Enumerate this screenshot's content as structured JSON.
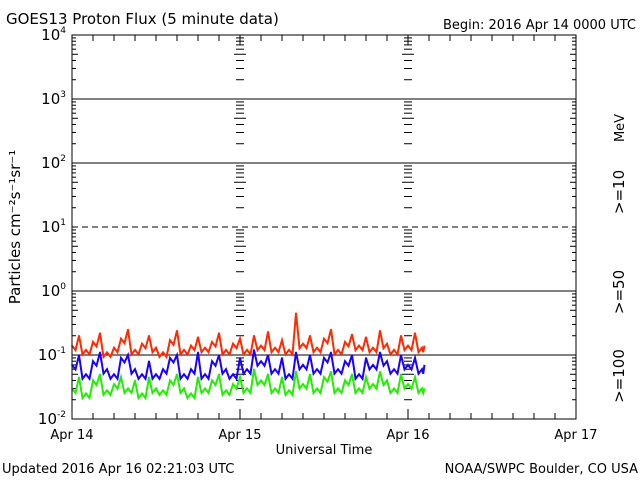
{
  "chart_data": {
    "type": "line",
    "title": "GOES13 Proton Flux (5 minute data)",
    "begin_label": "Begin: 2016 Apr 14 0000 UTC",
    "xlabel": "Universal Time",
    "ylabel": "Particles cm⁻²s⁻¹sr⁻¹",
    "x_unit": "hours since 2016 Apr 14 0000 UTC",
    "xlim": [
      0,
      72
    ],
    "x_ticks": [
      {
        "v": 0,
        "label": "Apr 14"
      },
      {
        "v": 24,
        "label": "Apr 15"
      },
      {
        "v": 48,
        "label": "Apr 16"
      },
      {
        "v": 72,
        "label": "Apr 17"
      }
    ],
    "yscale": "log",
    "ylim": [
      0.01,
      10000
    ],
    "y_ticks": [
      {
        "exp": "4",
        "v": 10000
      },
      {
        "exp": "3",
        "v": 1000
      },
      {
        "exp": "2",
        "v": 100
      },
      {
        "exp": "1",
        "v": 10
      },
      {
        "exp": "0",
        "v": 1
      },
      {
        "exp": "-1",
        "v": 0.1
      },
      {
        "exp": "-2",
        "v": 0.01
      }
    ],
    "y_tick_base": "10",
    "dashed_gridline": 10,
    "unit_label": "MeV",
    "x": [
      0,
      1,
      2,
      3,
      4,
      5,
      6,
      7,
      8,
      9,
      10,
      11,
      12,
      13,
      14,
      15,
      16,
      17,
      18,
      19,
      20,
      21,
      22,
      23,
      24,
      25,
      26,
      27,
      28,
      29,
      30,
      31,
      32,
      33,
      34,
      35,
      36,
      37,
      38,
      39,
      40,
      41,
      42,
      43,
      44,
      45,
      46,
      47,
      48,
      49,
      50
    ],
    "series": [
      {
        "name": ">=10",
        "color": "#ff2a00",
        "values": [
          0.14,
          0.2,
          0.12,
          0.16,
          0.22,
          0.11,
          0.13,
          0.18,
          0.25,
          0.12,
          0.15,
          0.2,
          0.13,
          0.11,
          0.17,
          0.24,
          0.12,
          0.14,
          0.19,
          0.13,
          0.16,
          0.22,
          0.12,
          0.15,
          0.18,
          0.12,
          0.2,
          0.14,
          0.23,
          0.13,
          0.17,
          0.12,
          0.45,
          0.15,
          0.2,
          0.13,
          0.18,
          0.25,
          0.12,
          0.16,
          0.21,
          0.14,
          0.19,
          0.13,
          0.24,
          0.15,
          0.12,
          0.2,
          0.14,
          0.22,
          0.13
        ]
      },
      {
        "name": ">=50",
        "color": "#1a00ff",
        "values": [
          0.07,
          0.1,
          0.05,
          0.08,
          0.11,
          0.06,
          0.05,
          0.09,
          0.1,
          0.06,
          0.05,
          0.08,
          0.05,
          0.06,
          0.09,
          0.1,
          0.05,
          0.06,
          0.11,
          0.05,
          0.08,
          0.1,
          0.06,
          0.05,
          0.09,
          0.06,
          0.12,
          0.08,
          0.1,
          0.06,
          0.09,
          0.05,
          0.11,
          0.07,
          0.1,
          0.06,
          0.09,
          0.11,
          0.06,
          0.08,
          0.1,
          0.05,
          0.09,
          0.07,
          0.11,
          0.08,
          0.06,
          0.1,
          0.07,
          0.09,
          0.06
        ]
      },
      {
        "name": ">=100",
        "color": "#22ee00",
        "values": [
          0.03,
          0.045,
          0.025,
          0.04,
          0.05,
          0.028,
          0.035,
          0.045,
          0.03,
          0.04,
          0.025,
          0.045,
          0.03,
          0.028,
          0.04,
          0.05,
          0.03,
          0.025,
          0.045,
          0.03,
          0.04,
          0.05,
          0.028,
          0.035,
          0.045,
          0.03,
          0.06,
          0.04,
          0.05,
          0.03,
          0.045,
          0.028,
          0.055,
          0.035,
          0.05,
          0.03,
          0.045,
          0.055,
          0.03,
          0.04,
          0.05,
          0.03,
          0.045,
          0.035,
          0.055,
          0.04,
          0.03,
          0.05,
          0.035,
          0.045,
          0.03
        ]
      }
    ],
    "grid": true
  },
  "footer": {
    "updated": "Updated 2016 Apr 16 02:21:03 UTC",
    "source": "NOAA/SWPC Boulder, CO USA"
  }
}
